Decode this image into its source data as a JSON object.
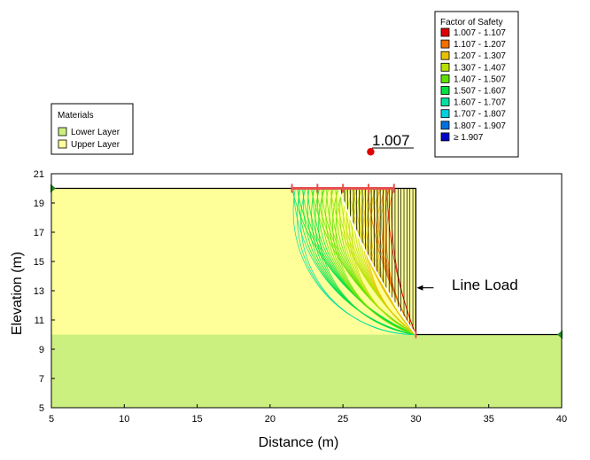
{
  "chart_data": {
    "type": "diagram-plot",
    "title": "",
    "xlabel": "Distance (m)",
    "ylabel": "Elevation (m)",
    "xlim": [
      5,
      40
    ],
    "ylim": [
      5,
      21
    ],
    "xticks": [
      5,
      10,
      15,
      20,
      25,
      30,
      35,
      40
    ],
    "yticks": [
      5,
      7,
      9,
      11,
      13,
      15,
      17,
      19,
      21
    ],
    "materials": {
      "title": "Materials",
      "items": [
        {
          "label": "Lower Layer",
          "color": "#ccf080"
        },
        {
          "label": "Upper Layer",
          "color": "#ffff99"
        }
      ]
    },
    "fos_legend": {
      "title": "Factor of Safety",
      "items": [
        {
          "label": "1.007 - 1.107",
          "color": "#e00000"
        },
        {
          "label": "1.107 - 1.207",
          "color": "#f07000"
        },
        {
          "label": "1.207 - 1.307",
          "color": "#e8c000"
        },
        {
          "label": "1.307 - 1.407",
          "color": "#b8e000"
        },
        {
          "label": "1.407 - 1.507",
          "color": "#60e000"
        },
        {
          "label": "1.507 - 1.607",
          "color": "#00e040"
        },
        {
          "label": "1.607 - 1.707",
          "color": "#00e0a0"
        },
        {
          "label": "1.707 - 1.807",
          "color": "#00d0e0"
        },
        {
          "label": "1.807 - 1.907",
          "color": "#0070e0"
        },
        {
          "label": "≥ 1.907",
          "color": "#0000c8"
        }
      ]
    },
    "regions": [
      {
        "name": "Upper Layer",
        "polygon": [
          [
            5,
            10
          ],
          [
            30,
            10
          ],
          [
            30,
            20
          ],
          [
            5,
            20
          ]
        ]
      },
      {
        "name": "Lower Layer",
        "polygon": [
          [
            5,
            5
          ],
          [
            40,
            5
          ],
          [
            40,
            10
          ],
          [
            5,
            10
          ]
        ]
      }
    ],
    "ground_surface": [
      [
        5,
        20
      ],
      [
        30,
        20
      ],
      [
        30,
        10
      ],
      [
        40,
        10
      ]
    ],
    "critical_center": {
      "x": 26.9,
      "y": 22.5,
      "fs": "1.007"
    },
    "critical_slip": {
      "entry_x": 24.7,
      "exit_x": 30,
      "exit_y": 10
    },
    "slip_surfaces": {
      "entry_range": [
        21.5,
        28.5
      ],
      "exit": [
        30,
        10
      ],
      "count": 60
    },
    "line_load": {
      "label": "Line Load",
      "x": 30,
      "y": 13.2,
      "direction": "left"
    }
  }
}
